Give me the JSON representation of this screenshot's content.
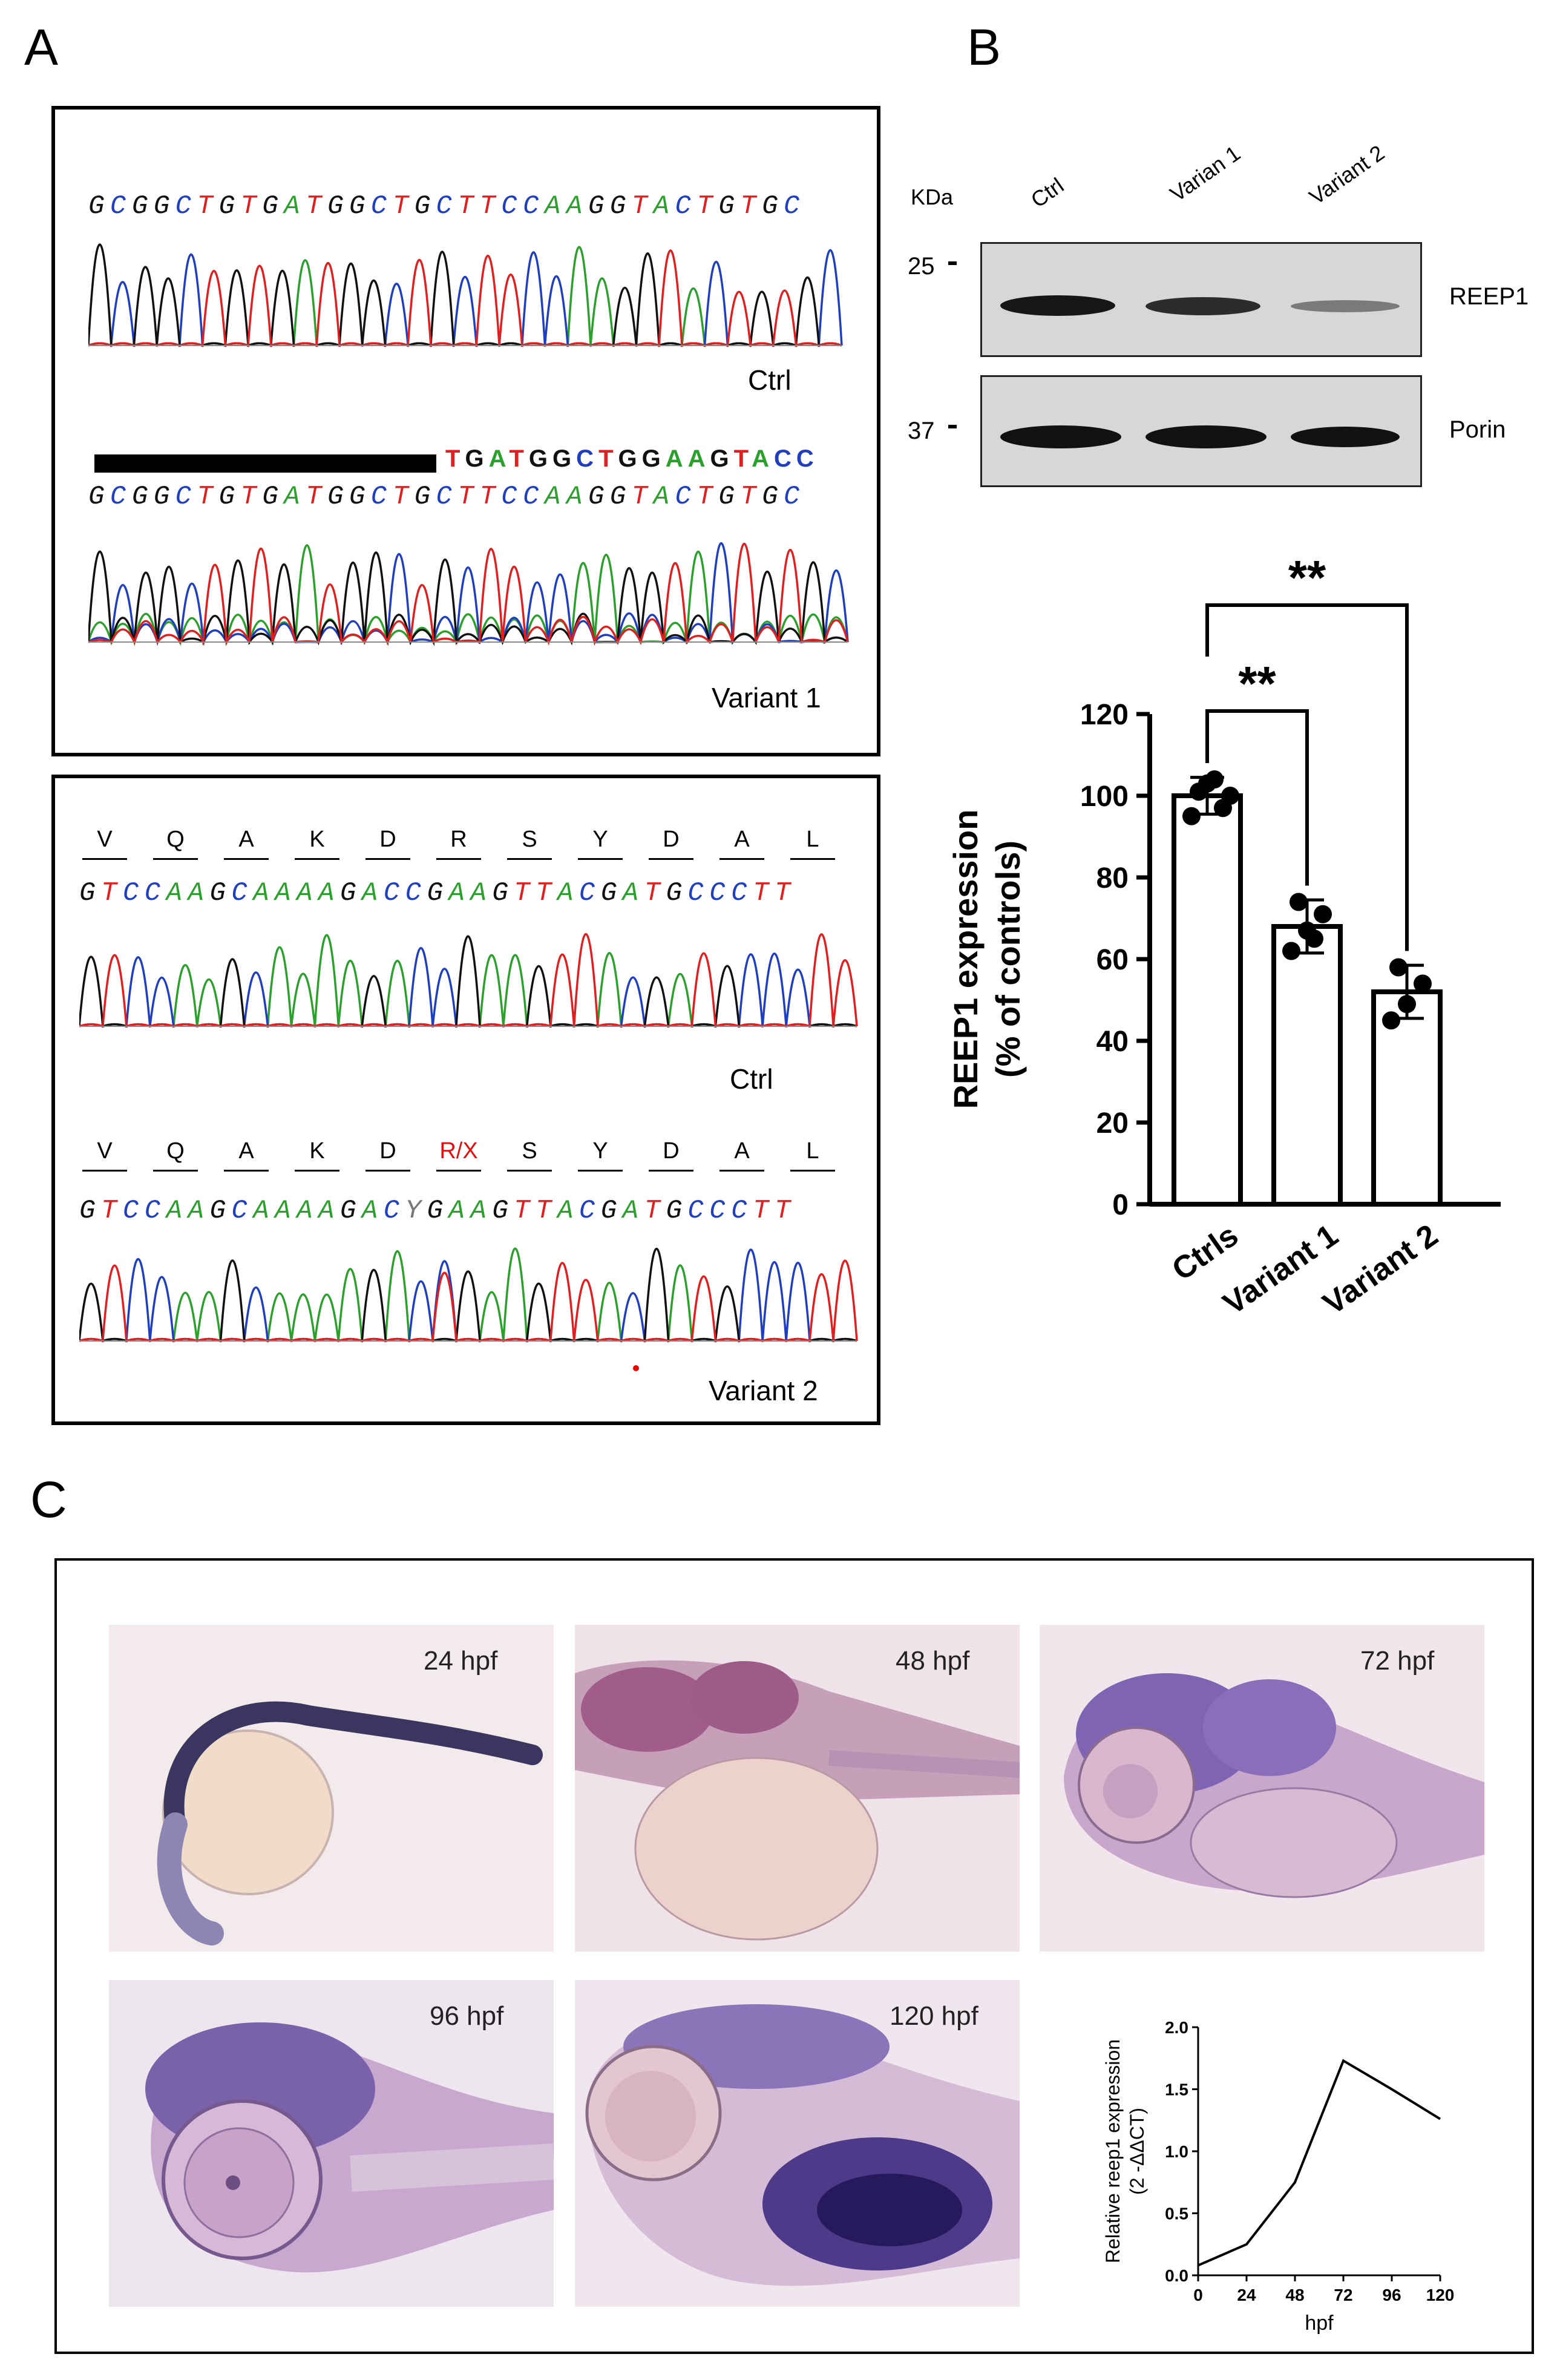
{
  "panels": {
    "a": "A",
    "b": "B",
    "c": "C"
  },
  "panel_a": {
    "top_box": {
      "ctrl_seq": "GCGGCTGTGATGGCTGCTTCCAAGGTACTGTGC",
      "ctrl_label": "Ctrl",
      "variant_ref_seq": "TGATGGCTGGAAGTACC",
      "variant_seq": "GCGGCTGTGATGGCTGCTTCCAAGGTACTGTGC",
      "variant_label": "Variant 1"
    },
    "bottom_box": {
      "ctrl_aa": [
        "V",
        "Q",
        "A",
        "K",
        "D",
        "R",
        "S",
        "Y",
        "D",
        "A",
        "L"
      ],
      "ctrl_seq": "GTCCAAGCAAAAGACCGAAGTTACGATGCCCTT",
      "ctrl_label": "Ctrl",
      "variant_aa": [
        "V",
        "Q",
        "A",
        "K",
        "D",
        "R/X",
        "S",
        "Y",
        "D",
        "A",
        "L"
      ],
      "variant_seq": "GTCCAAGCAAAAGACYGAAGTTACGATGCCCTT",
      "variant_label": "Variant 2"
    }
  },
  "panel_b": {
    "kda_label": "KDa",
    "lanes": [
      "Ctrl",
      "Varian 1",
      "Variant 2"
    ],
    "markers": [
      "25",
      "37"
    ],
    "blot_labels": [
      "REEP1",
      "Porin"
    ],
    "bar_chart": {
      "chart_data": {
        "type": "bar",
        "title": "",
        "categories": [
          "Ctrls",
          "Variant 1",
          "Variant 2"
        ],
        "values": [
          100,
          68,
          52
        ],
        "errors": [
          4.5,
          6.5,
          6.5
        ],
        "points": [
          [
            95,
            103,
            97,
            101,
            104,
            100
          ],
          [
            62,
            67,
            71,
            74,
            65
          ],
          [
            45,
            49,
            54,
            58
          ]
        ],
        "ylabel": "REEP1 expression\n(% of controls)",
        "ylabel_line1": "REEP1 expression",
        "ylabel_line2": "(% of controls)",
        "ylim": [
          0,
          120
        ],
        "yticks": [
          "0",
          "20",
          "40",
          "60",
          "80",
          "100",
          "120"
        ],
        "significance": [
          {
            "from": "Ctrls",
            "to": "Variant 1",
            "label": "**"
          },
          {
            "from": "Ctrls",
            "to": "Variant 2",
            "label": "**"
          }
        ]
      }
    }
  },
  "panel_c": {
    "stages": [
      "24 hpf",
      "48 hpf",
      "72 hpf",
      "96 hpf",
      "120 hpf"
    ],
    "line_chart": {
      "chart_data": {
        "type": "line",
        "x": [
          0,
          24,
          48,
          72,
          96,
          120
        ],
        "y": [
          0.08,
          0.25,
          0.75,
          1.73,
          1.5,
          1.26
        ],
        "xlabel": "hpf",
        "ylabel_line1": "Relative reep1 expression",
        "ylabel_line2": "(2 -ΔΔCT)",
        "xticks": [
          "0",
          "24",
          "48",
          "72",
          "96",
          "120"
        ],
        "yticks": [
          "0.0",
          "0.5",
          "1.0",
          "1.5",
          "2.0"
        ],
        "ylim": [
          0,
          2.0
        ],
        "xlim": [
          0,
          120
        ]
      }
    }
  }
}
